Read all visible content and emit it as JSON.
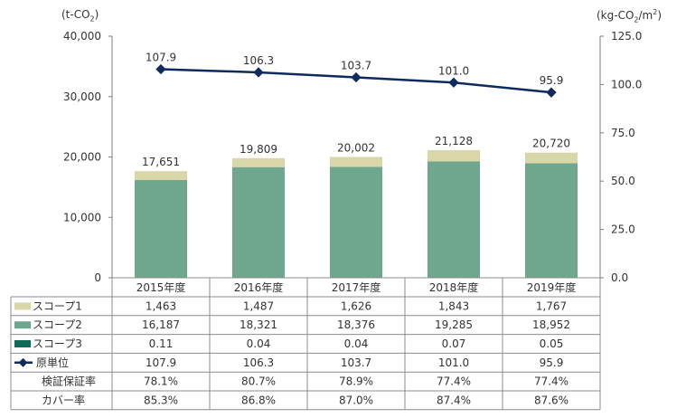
{
  "chart_data": {
    "type": "bar",
    "stacked": true,
    "categories": [
      "2015年度",
      "2016年度",
      "2017年度",
      "2018年度",
      "2019年度"
    ],
    "left_axis": {
      "unit": {
        "prefix": "(t-CO",
        "sub": "2",
        "suffix": ")"
      },
      "ylim": [
        0,
        40000
      ],
      "ticks": [
        "0",
        "10,000",
        "20,000",
        "30,000",
        "40,000"
      ]
    },
    "right_axis": {
      "unit": {
        "prefix": "(kg-CO",
        "sub": "2",
        "mid": "/m",
        "sup": "2",
        "suffix": ")"
      },
      "ylim": [
        0,
        125
      ],
      "ticks": [
        "0.0",
        "25.0",
        "50.0",
        "75.0",
        "100.0",
        "125.0"
      ]
    },
    "series": [
      {
        "name": "スコープ3",
        "color": "#0e6b58",
        "values": [
          0.11,
          0.04,
          0.04,
          0.07,
          0.05
        ],
        "labels": [
          "0.11",
          "0.04",
          "0.04",
          "0.07",
          "0.05"
        ]
      },
      {
        "name": "スコープ2",
        "color": "#6fa78e",
        "values": [
          16187,
          18321,
          18376,
          19285,
          18952
        ],
        "labels": [
          "16,187",
          "18,321",
          "18,376",
          "19,285",
          "18,952"
        ]
      },
      {
        "name": "スコープ1",
        "color": "#d9d6a8",
        "values": [
          1463,
          1487,
          1626,
          1843,
          1767
        ],
        "labels": [
          "1,463",
          "1,487",
          "1,626",
          "1,843",
          "1,767"
        ]
      }
    ],
    "totals": [
      "17,651",
      "19,809",
      "20,002",
      "21,128",
      "20,720"
    ],
    "line": {
      "name": "原単位",
      "color": "#0f2a5c",
      "axis": "right",
      "values": [
        107.9,
        106.3,
        103.7,
        101.0,
        95.9
      ],
      "labels": [
        "107.9",
        "106.3",
        "103.7",
        "101.0",
        "95.9"
      ]
    },
    "table_rows": [
      {
        "key": "scope1",
        "label": "スコープ1",
        "marker": "box",
        "color": "#d9d6a8",
        "cells": [
          "1,463",
          "1,487",
          "1,626",
          "1,843",
          "1,767"
        ]
      },
      {
        "key": "scope2",
        "label": "スコープ2",
        "marker": "box",
        "color": "#6fa78e",
        "cells": [
          "16,187",
          "18,321",
          "18,376",
          "19,285",
          "18,952"
        ]
      },
      {
        "key": "scope3",
        "label": "スコープ3",
        "marker": "box",
        "color": "#0e6b58",
        "cells": [
          "0.11",
          "0.04",
          "0.04",
          "0.07",
          "0.05"
        ]
      },
      {
        "key": "intensity",
        "label": "原単位",
        "marker": "line",
        "color": "#0f2a5c",
        "cells": [
          "107.9",
          "106.3",
          "103.7",
          "101.0",
          "95.9"
        ]
      },
      {
        "key": "assurance",
        "label": "検証保証率",
        "marker": "none",
        "color": "",
        "cells": [
          "78.1%",
          "80.7%",
          "78.9%",
          "77.4%",
          "77.4%"
        ]
      },
      {
        "key": "coverage",
        "label": "カバー率",
        "marker": "none",
        "color": "",
        "cells": [
          "85.3%",
          "86.8%",
          "87.0%",
          "87.4%",
          "87.6%"
        ]
      }
    ],
    "grid": false,
    "legend": "data-table"
  }
}
